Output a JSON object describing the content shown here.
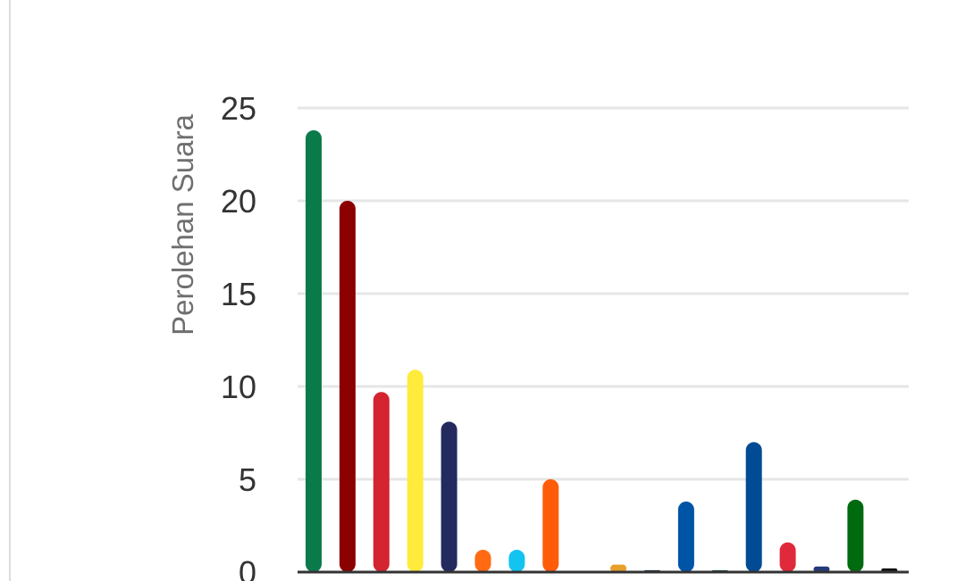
{
  "chart_data": {
    "type": "bar",
    "ylabel": "Perolehan Suara",
    "ylim": [
      0,
      25
    ],
    "yticks": [
      "0",
      "5",
      "10",
      "15",
      "20",
      "25"
    ],
    "grid": true,
    "series": [
      {
        "values": [
          23.8,
          20,
          9.7,
          10.9,
          8.1,
          1.2,
          1.2,
          5.0,
          0,
          0.4,
          0.1,
          3.8,
          0.1,
          7.0,
          1.6,
          0.3,
          3.9,
          0.2
        ],
        "colors": [
          "#0b7a4b",
          "#8b0000",
          "#d3242f",
          "#ffeb3b",
          "#232a5e",
          "#ff6a13",
          "#14c4f0",
          "#ff5c0a",
          "#ffffff",
          "#e8a02d",
          "#0f2446",
          "#0054a6",
          "#0d4f3c",
          "#004b93",
          "#e02a3b",
          "#233a7a",
          "#006a0f",
          "#111111"
        ]
      }
    ]
  }
}
